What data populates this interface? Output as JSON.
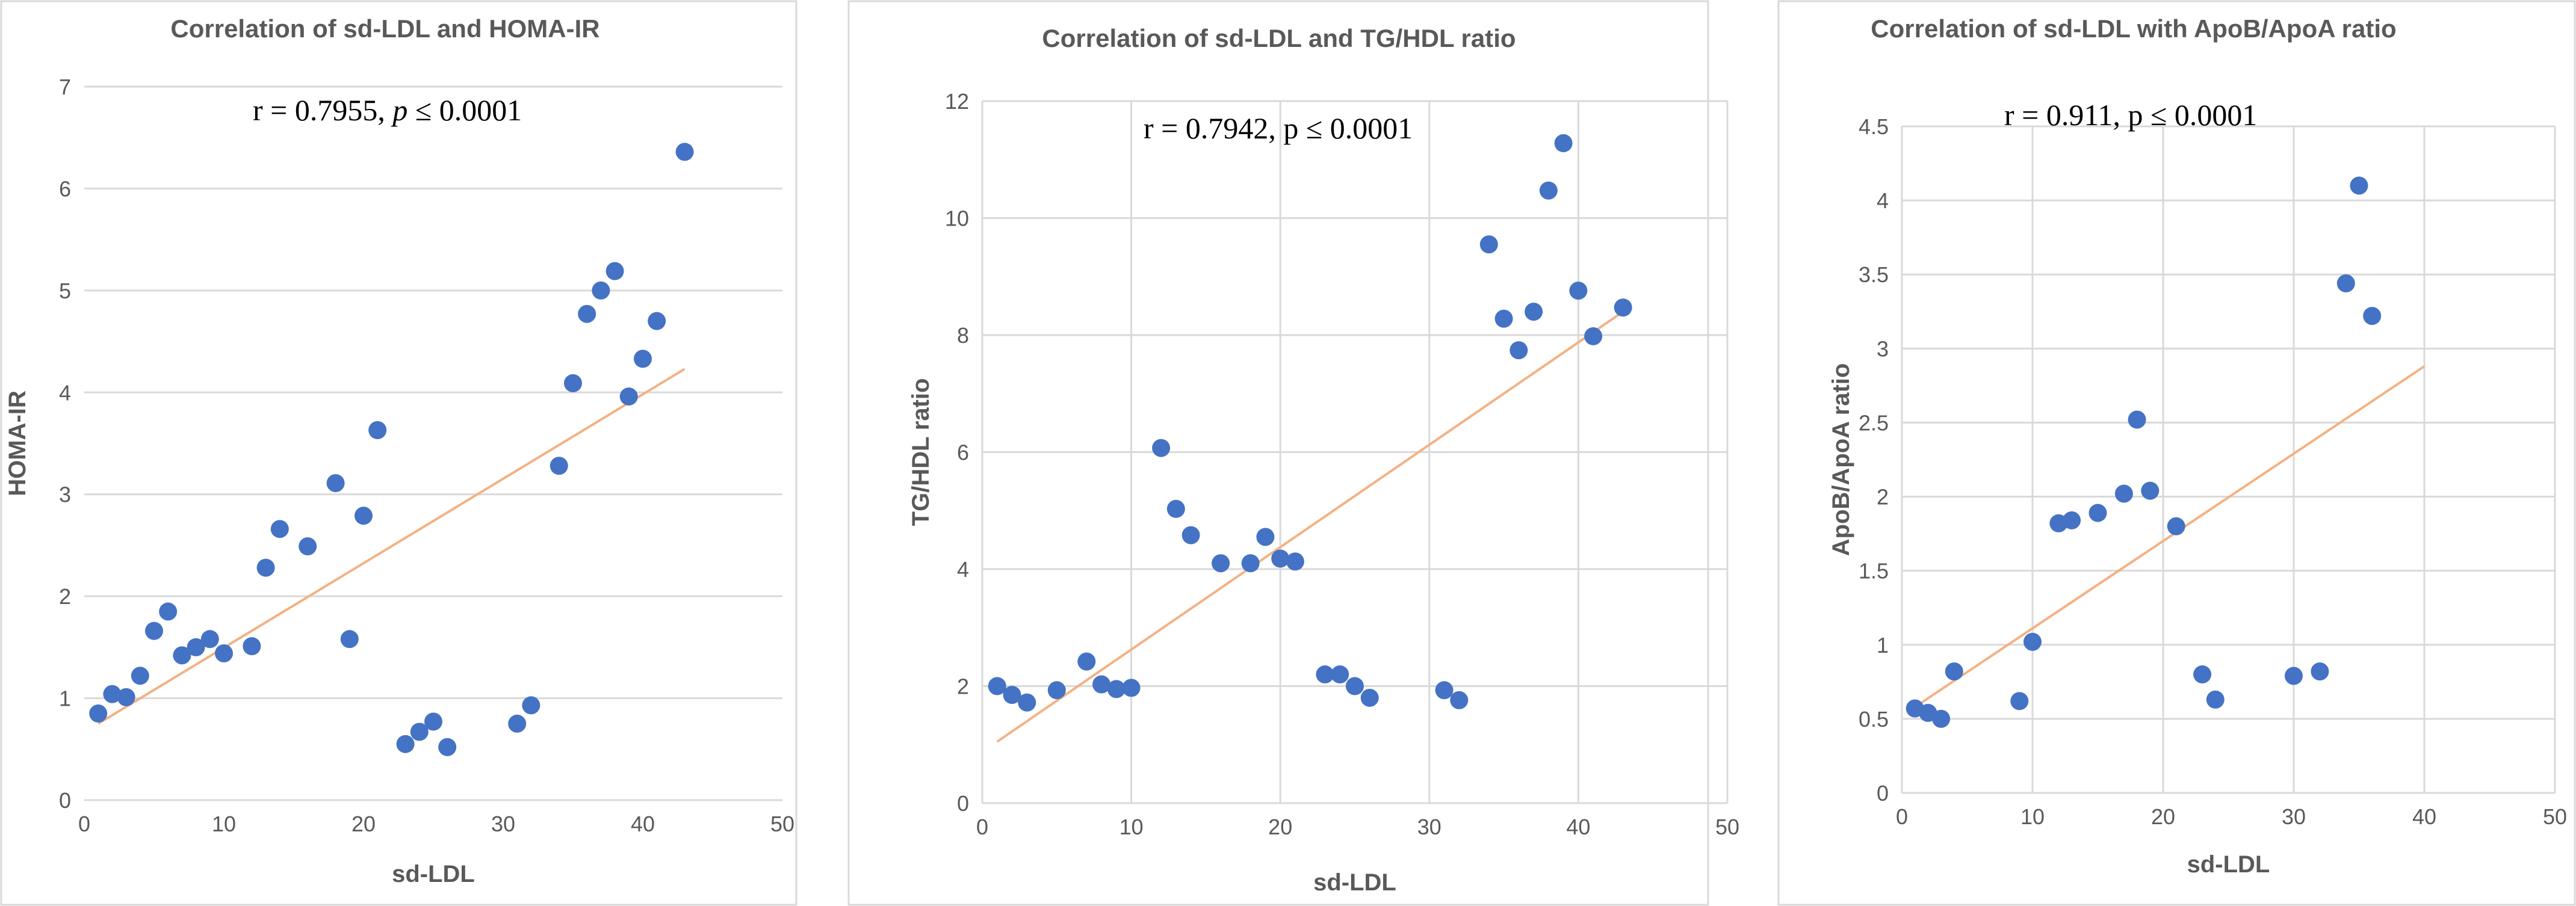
{
  "chart_data": [
    {
      "type": "scatter",
      "title": "Correlation of sd-LDL and HOMA-IR",
      "xlabel": "sd-LDL",
      "ylabel": "HOMA-IR",
      "xlim": [
        0,
        50
      ],
      "ylim": [
        0,
        7
      ],
      "xticks": [
        0,
        10,
        20,
        30,
        40,
        50
      ],
      "yticks": [
        0,
        1,
        2,
        3,
        4,
        5,
        6,
        7
      ],
      "grid": "horizontal",
      "annotation": {
        "text_pre": "r = 0.7955, ",
        "text_italic": "p",
        "text_post": " ≤ 0.0001"
      },
      "trendline": {
        "x": [
          1,
          43
        ],
        "y": [
          0.75,
          4.23
        ]
      },
      "points": {
        "x": [
          1,
          2,
          3,
          4,
          5,
          6,
          7,
          8,
          9,
          10,
          12,
          13,
          14,
          16,
          18,
          19,
          20,
          21,
          23,
          24,
          25,
          26,
          31,
          32,
          34,
          35,
          36,
          37,
          38,
          39,
          40,
          41,
          43
        ],
        "y": [
          0.85,
          1.04,
          1.01,
          1.22,
          1.66,
          1.85,
          1.42,
          1.5,
          1.58,
          1.44,
          1.51,
          2.28,
          2.66,
          2.49,
          3.11,
          1.58,
          2.79,
          3.63,
          0.55,
          0.67,
          0.77,
          0.52,
          0.75,
          0.93,
          3.28,
          4.09,
          4.77,
          5.0,
          5.19,
          3.96,
          4.33,
          4.7,
          6.36
        ]
      }
    },
    {
      "type": "scatter",
      "title": "Correlation of sd-LDL and TG/HDL ratio",
      "xlabel": "sd-LDL",
      "ylabel": "TG/HDL ratio",
      "xlim": [
        0,
        50
      ],
      "ylim": [
        0,
        12
      ],
      "xticks": [
        0,
        10,
        20,
        30,
        40,
        50
      ],
      "yticks": [
        0,
        2,
        4,
        6,
        8,
        10,
        12
      ],
      "grid": "horizontal+vertical",
      "annotation": {
        "text_pre": "r = 0.7942, p ≤ 0.0001",
        "text_italic": "",
        "text_post": ""
      },
      "trendline": {
        "x": [
          1,
          43
        ],
        "y": [
          1.05,
          8.4
        ]
      },
      "points": {
        "x": [
          1,
          2,
          3,
          5,
          7,
          8,
          9,
          10,
          12,
          13,
          14,
          16,
          18,
          19,
          20,
          21,
          23,
          24,
          25,
          26,
          31,
          32,
          34,
          35,
          36,
          37,
          38,
          39,
          40,
          41,
          43
        ],
        "y": [
          2.0,
          1.85,
          1.72,
          1.93,
          2.42,
          2.03,
          1.95,
          1.97,
          6.07,
          5.03,
          4.58,
          4.1,
          4.1,
          4.55,
          4.18,
          4.13,
          2.2,
          2.2,
          2.0,
          1.8,
          1.93,
          1.76,
          9.55,
          8.28,
          7.74,
          8.4,
          10.47,
          11.28,
          8.76,
          7.98,
          8.47
        ]
      }
    },
    {
      "type": "scatter",
      "title": "Correlation of sd-LDL with ApoB/ApoA ratio",
      "xlabel": "sd-LDL",
      "ylabel": "ApoB/ApoA ratio",
      "xlim": [
        0,
        50
      ],
      "ylim": [
        0,
        4.5
      ],
      "xticks": [
        0,
        10,
        20,
        30,
        40,
        50
      ],
      "yticks": [
        0,
        0.5,
        1,
        1.5,
        2,
        2.5,
        3,
        3.5,
        4,
        4.5
      ],
      "grid": "horizontal+vertical",
      "annotation": {
        "text_pre": "r = 0.911, p ≤ 0.0001",
        "text_italic": "",
        "text_post": ""
      },
      "trendline": {
        "x": [
          1,
          40
        ],
        "y": [
          0.58,
          2.88
        ]
      },
      "points": {
        "x": [
          1,
          2,
          3,
          4,
          9,
          10,
          12,
          13,
          15,
          17,
          18,
          19,
          21,
          23,
          24,
          30,
          32,
          34,
          35,
          36
        ],
        "y": [
          0.57,
          0.54,
          0.5,
          0.82,
          0.62,
          1.02,
          1.82,
          1.84,
          1.89,
          2.02,
          2.52,
          2.04,
          1.8,
          0.8,
          0.63,
          0.79,
          0.82,
          3.44,
          4.1,
          3.22
        ]
      }
    }
  ]
}
